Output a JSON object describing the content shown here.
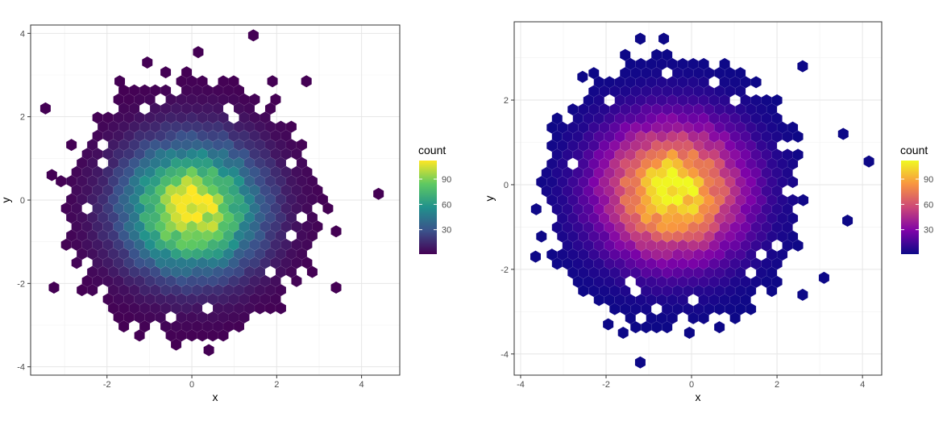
{
  "chart_data": [
    {
      "type": "heatmap",
      "subtype": "hexbin",
      "xlabel": "x",
      "ylabel": "y",
      "xlim": [
        -3.8,
        4.9
      ],
      "ylim": [
        -4.2,
        4.2
      ],
      "x_ticks": [
        -2,
        0,
        2,
        4
      ],
      "y_ticks": [
        -4,
        -2,
        0,
        2,
        4
      ],
      "x_tick_labels": [
        "-2",
        "0",
        "2",
        "4"
      ],
      "y_tick_labels": [
        "-4",
        "-2",
        "0",
        "2",
        "4"
      ],
      "grid": true,
      "legend": {
        "title": "count",
        "position": "right",
        "ticks": [
          30,
          60,
          90
        ],
        "tick_labels": [
          "30",
          "60",
          "90"
        ],
        "range": [
          1,
          112
        ]
      },
      "colormap": "viridis",
      "colors": [
        "#440154",
        "#3b528b",
        "#21918c",
        "#5ec962",
        "#fde725"
      ],
      "hexbin": {
        "center_x": 0,
        "center_y": -0.2,
        "sd_x": 1.07,
        "sd_y": 1.05,
        "peak_count": 112,
        "radius_x": 3.0,
        "radius_y": 3.15
      },
      "outlier_bins": [
        {
          "x": 1.45,
          "y": 3.95
        },
        {
          "x": 0.15,
          "y": 3.55
        },
        {
          "x": -1.05,
          "y": 3.3
        },
        {
          "x": -3.45,
          "y": 2.2
        },
        {
          "x": -3.3,
          "y": 0.6
        },
        {
          "x": 4.4,
          "y": 0.15
        },
        {
          "x": -3.25,
          "y": -2.1
        },
        {
          "x": 3.4,
          "y": -2.1
        },
        {
          "x": 0.4,
          "y": -3.6
        },
        {
          "x": -1.7,
          "y": 2.85
        },
        {
          "x": 1.9,
          "y": 2.85
        },
        {
          "x": 2.7,
          "y": 2.85
        },
        {
          "x": 3.4,
          "y": -0.75
        }
      ]
    },
    {
      "type": "heatmap",
      "subtype": "hexbin",
      "xlabel": "x",
      "ylabel": "y",
      "xlim": [
        -4.15,
        4.45
      ],
      "ylim": [
        -4.5,
        3.85
      ],
      "x_ticks": [
        -4,
        -2,
        0,
        2,
        4
      ],
      "y_ticks": [
        -4,
        -2,
        0,
        2
      ],
      "x_tick_labels": [
        "-4",
        "-2",
        "0",
        "2",
        "4"
      ],
      "y_tick_labels": [
        "-4",
        "-2",
        "0",
        "2"
      ],
      "grid": true,
      "legend": {
        "title": "count",
        "position": "right",
        "ticks": [
          30,
          60,
          90
        ],
        "tick_labels": [
          "30",
          "60",
          "90"
        ],
        "range": [
          1,
          112
        ]
      },
      "colormap": "plasma",
      "colors": [
        "#0d0887",
        "#7e03a8",
        "#cc4778",
        "#f89540",
        "#f0f921"
      ],
      "hexbin": {
        "center_x": -0.45,
        "center_y": -0.15,
        "sd_x": 1.1,
        "sd_y": 1.05,
        "peak_count": 112,
        "radius_x": 3.05,
        "radius_y": 3.2
      },
      "outlier_bins": [
        {
          "x": -1.2,
          "y": 3.45
        },
        {
          "x": -0.65,
          "y": 3.45
        },
        {
          "x": 4.15,
          "y": 0.55
        },
        {
          "x": 3.55,
          "y": 1.2
        },
        {
          "x": 3.65,
          "y": -0.85
        },
        {
          "x": -3.65,
          "y": -1.7
        },
        {
          "x": -1.2,
          "y": -4.2
        },
        {
          "x": -1.6,
          "y": -3.5
        },
        {
          "x": -1.95,
          "y": -3.3
        },
        {
          "x": -2.55,
          "y": 2.55
        },
        {
          "x": 2.6,
          "y": 2.8
        },
        {
          "x": 3.1,
          "y": -2.2
        },
        {
          "x": 2.6,
          "y": -2.6
        },
        {
          "x": -0.05,
          "y": -3.5
        }
      ]
    }
  ]
}
